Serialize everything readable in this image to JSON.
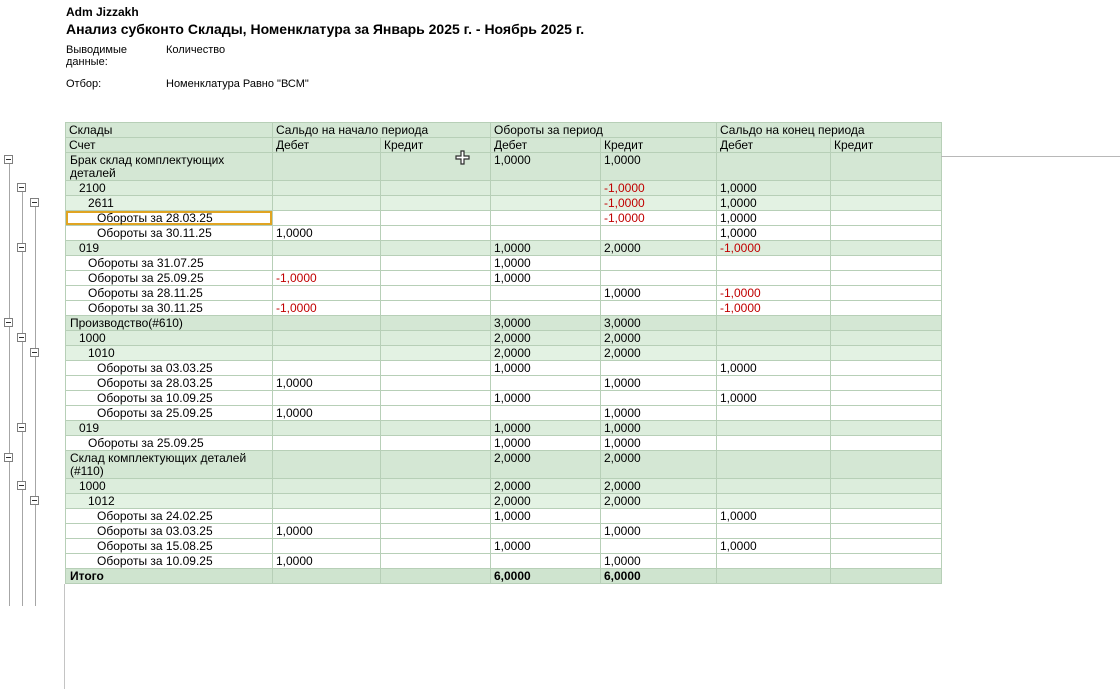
{
  "header": {
    "org": "Adm Jizzakh",
    "title": "Анализ субконто Склады, Номенклатура за Январь 2025 г. - Ноябрь 2025 г.",
    "params": [
      {
        "label": "Выводимые данные:",
        "value": "Количество"
      },
      {
        "label": "Отбор:",
        "value": "Номенклатура Равно \"ВСМ\""
      }
    ]
  },
  "table": {
    "corner_header": "Склады",
    "corner_subheader": "Счет",
    "column_groups": [
      "Сальдо на начало периода",
      "Обороты за период",
      "Сальдо на конец периода"
    ],
    "sub_columns": [
      "Дебет",
      "Кредит"
    ],
    "rows": [
      {
        "label": "Брак склад комплектующих деталей",
        "type": "group",
        "level": 0,
        "cells": [
          "",
          "",
          "1,0000",
          "1,0000",
          "",
          ""
        ]
      },
      {
        "label": "2100",
        "type": "group",
        "level": 1,
        "cells": [
          "",
          "",
          "",
          "-1,0000",
          "1,0000",
          ""
        ]
      },
      {
        "label": "2611",
        "type": "group",
        "level": 2,
        "cells": [
          "",
          "",
          "",
          "-1,0000",
          "1,0000",
          ""
        ]
      },
      {
        "label": "Обороты за 28.03.25",
        "type": "detail",
        "level": 3,
        "selected": true,
        "cells": [
          "",
          "",
          "",
          "-1,0000",
          "1,0000",
          ""
        ]
      },
      {
        "label": "Обороты за 30.11.25",
        "type": "detail",
        "level": 3,
        "cells": [
          "1,0000",
          "",
          "",
          "",
          "1,0000",
          ""
        ]
      },
      {
        "label": "019",
        "type": "group",
        "level": 1,
        "cells": [
          "",
          "",
          "1,0000",
          "2,0000",
          "-1,0000",
          ""
        ]
      },
      {
        "label": "Обороты за 31.07.25",
        "type": "detail",
        "level": 2,
        "cells": [
          "",
          "",
          "1,0000",
          "",
          "",
          ""
        ]
      },
      {
        "label": "Обороты за 25.09.25",
        "type": "detail",
        "level": 2,
        "cells": [
          "-1,0000",
          "",
          "1,0000",
          "",
          "",
          ""
        ]
      },
      {
        "label": "Обороты за 28.11.25",
        "type": "detail",
        "level": 2,
        "cells": [
          "",
          "",
          "",
          "1,0000",
          "-1,0000",
          ""
        ]
      },
      {
        "label": "Обороты за 30.11.25",
        "type": "detail",
        "level": 2,
        "cells": [
          "-1,0000",
          "",
          "",
          "",
          "-1,0000",
          ""
        ]
      },
      {
        "label": "Производство(#610)",
        "type": "group",
        "level": 0,
        "cells": [
          "",
          "",
          "3,0000",
          "3,0000",
          "",
          ""
        ]
      },
      {
        "label": "1000",
        "type": "group",
        "level": 1,
        "cells": [
          "",
          "",
          "2,0000",
          "2,0000",
          "",
          ""
        ]
      },
      {
        "label": "1010",
        "type": "group",
        "level": 2,
        "cells": [
          "",
          "",
          "2,0000",
          "2,0000",
          "",
          ""
        ]
      },
      {
        "label": "Обороты за 03.03.25",
        "type": "detail",
        "level": 3,
        "cells": [
          "",
          "",
          "1,0000",
          "",
          "1,0000",
          ""
        ]
      },
      {
        "label": "Обороты за 28.03.25",
        "type": "detail",
        "level": 3,
        "cells": [
          "1,0000",
          "",
          "",
          "1,0000",
          "",
          ""
        ]
      },
      {
        "label": "Обороты за 10.09.25",
        "type": "detail",
        "level": 3,
        "cells": [
          "",
          "",
          "1,0000",
          "",
          "1,0000",
          ""
        ]
      },
      {
        "label": "Обороты за 25.09.25",
        "type": "detail",
        "level": 3,
        "cells": [
          "1,0000",
          "",
          "",
          "1,0000",
          "",
          ""
        ]
      },
      {
        "label": "019",
        "type": "group",
        "level": 1,
        "cells": [
          "",
          "",
          "1,0000",
          "1,0000",
          "",
          ""
        ]
      },
      {
        "label": "Обороты за 25.09.25",
        "type": "detail",
        "level": 2,
        "cells": [
          "",
          "",
          "1,0000",
          "1,0000",
          "",
          ""
        ]
      },
      {
        "label": "Склад комплектующих деталей (#110)",
        "type": "group",
        "level": 0,
        "cells": [
          "",
          "",
          "2,0000",
          "2,0000",
          "",
          ""
        ]
      },
      {
        "label": "1000",
        "type": "group",
        "level": 1,
        "cells": [
          "",
          "",
          "2,0000",
          "2,0000",
          "",
          ""
        ]
      },
      {
        "label": "1012",
        "type": "group",
        "level": 2,
        "cells": [
          "",
          "",
          "2,0000",
          "2,0000",
          "",
          ""
        ]
      },
      {
        "label": "Обороты за 24.02.25",
        "type": "detail",
        "level": 3,
        "cells": [
          "",
          "",
          "1,0000",
          "",
          "1,0000",
          ""
        ]
      },
      {
        "label": "Обороты за 03.03.25",
        "type": "detail",
        "level": 3,
        "cells": [
          "1,0000",
          "",
          "",
          "1,0000",
          "",
          ""
        ]
      },
      {
        "label": "Обороты за 15.08.25",
        "type": "detail",
        "level": 3,
        "cells": [
          "",
          "",
          "1,0000",
          "",
          "1,0000",
          ""
        ]
      },
      {
        "label": "Обороты за 10.09.25",
        "type": "detail",
        "level": 3,
        "cells": [
          "1,0000",
          "",
          "",
          "1,0000",
          "",
          ""
        ]
      },
      {
        "label": "Итого",
        "type": "total",
        "level": 0,
        "cells": [
          "",
          "",
          "6,0000",
          "6,0000",
          "",
          ""
        ]
      }
    ]
  },
  "colors": {
    "group_row_bg": "#d4e7d4",
    "header_bg": "#d4e7d4",
    "negative_value": "#c00000",
    "selection_border": "#e0a422"
  },
  "cursor_icon": "cell-cross-cursor"
}
